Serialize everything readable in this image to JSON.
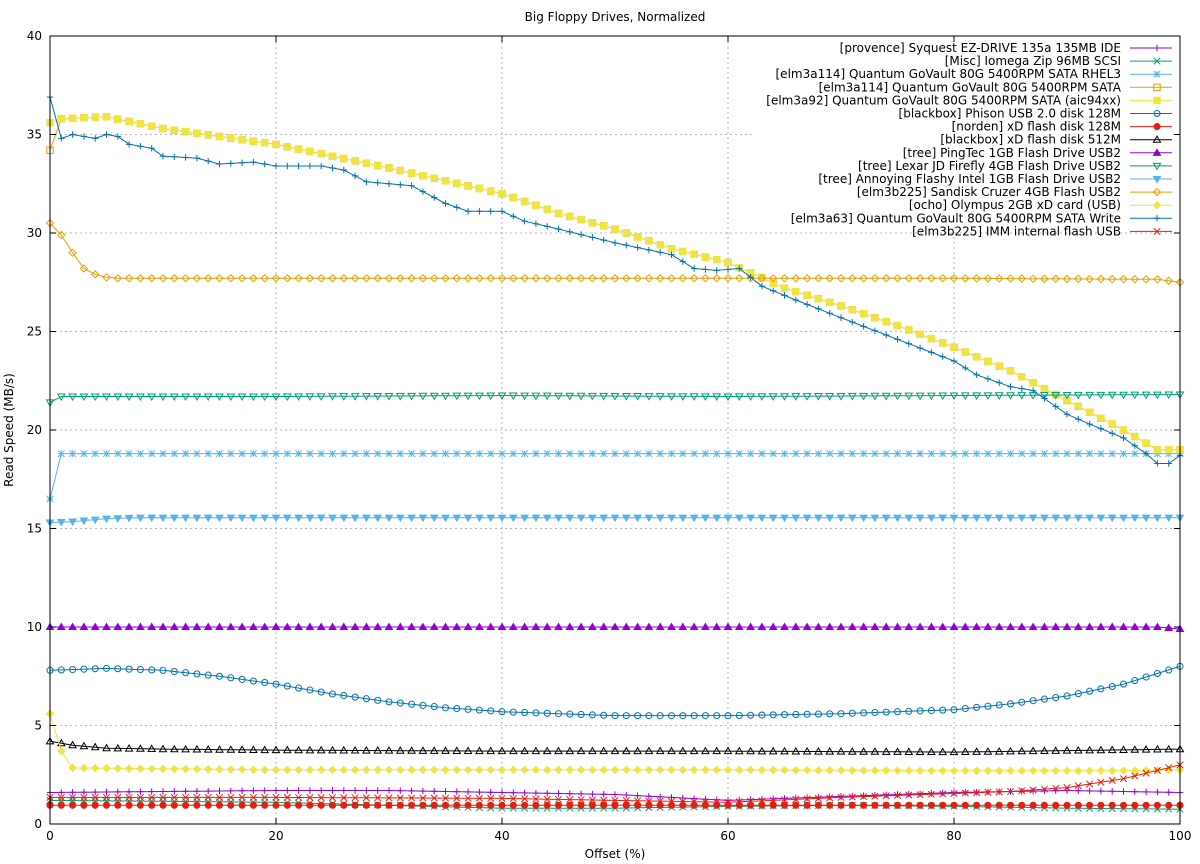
{
  "chart_data": {
    "type": "line",
    "title": "Big Floppy Drives, Normalized",
    "xlabel": "Offset (%)",
    "ylabel": "Read Speed (MB/s)",
    "xlim": [
      0,
      100
    ],
    "ylim": [
      0,
      40
    ],
    "xticks": [
      0,
      20,
      40,
      60,
      80,
      100
    ],
    "yticks": [
      0,
      5,
      10,
      15,
      20,
      25,
      30,
      35,
      40
    ],
    "grid": true,
    "legend_position": "top-right",
    "series": [
      {
        "name": "[provence] Syquest EZ-DRIVE 135a 135MB IDE",
        "color": "#9400d3",
        "marker": "plus",
        "points": [
          [
            0,
            1.6
          ],
          [
            10,
            1.65
          ],
          [
            20,
            1.7
          ],
          [
            30,
            1.7
          ],
          [
            40,
            1.6
          ],
          [
            50,
            1.5
          ],
          [
            60,
            1.2
          ],
          [
            70,
            1.4
          ],
          [
            80,
            1.6
          ],
          [
            90,
            1.7
          ],
          [
            100,
            1.6
          ]
        ]
      },
      {
        "name": "[Misc] Iomega Zip 96MB SCSI",
        "color": "#009e73",
        "marker": "cross",
        "points": [
          [
            0,
            1.2
          ],
          [
            10,
            1.15
          ],
          [
            20,
            1.1
          ],
          [
            30,
            0.95
          ],
          [
            40,
            0.8
          ],
          [
            50,
            0.8
          ],
          [
            60,
            0.9
          ],
          [
            70,
            0.95
          ],
          [
            80,
            0.9
          ],
          [
            90,
            0.8
          ],
          [
            100,
            0.75
          ]
        ]
      },
      {
        "name": "[elm3a114] Quantum GoVault 80G 5400RPM SATA RHEL3",
        "color": "#56b4e9",
        "marker": "star",
        "points": [
          [
            0,
            16.5
          ],
          [
            1,
            18.8
          ],
          [
            10,
            18.8
          ],
          [
            20,
            18.8
          ],
          [
            40,
            18.8
          ],
          [
            60,
            18.8
          ],
          [
            80,
            18.8
          ],
          [
            100,
            18.8
          ]
        ]
      },
      {
        "name": "[elm3a114] Quantum GoVault 80G 5400RPM SATA",
        "color": "#e69f00",
        "marker": "box",
        "points": [
          [
            0,
            34.2
          ],
          [
            1,
            35.8
          ],
          [
            5,
            35.9
          ],
          [
            10,
            35.3
          ],
          [
            20,
            34.5
          ],
          [
            30,
            33.3
          ],
          [
            40,
            32.0
          ],
          [
            45,
            31.0
          ],
          [
            50,
            30.2
          ],
          [
            55,
            29.2
          ],
          [
            60,
            28.5
          ],
          [
            65,
            27.2
          ],
          [
            70,
            26.3
          ],
          [
            75,
            25.3
          ],
          [
            80,
            24.2
          ],
          [
            85,
            23.0
          ],
          [
            90,
            21.5
          ],
          [
            95,
            20.0
          ],
          [
            98,
            19.0
          ],
          [
            100,
            19.0
          ]
        ]
      },
      {
        "name": "[elm3a92] Quantum GoVault 80G 5400RPM SATA (aic94xx)",
        "color": "#f0e442",
        "marker": "filled-box",
        "points": [
          [
            0,
            35.6
          ],
          [
            1,
            35.8
          ],
          [
            5,
            35.9
          ],
          [
            10,
            35.3
          ],
          [
            20,
            34.5
          ],
          [
            30,
            33.3
          ],
          [
            40,
            32.0
          ],
          [
            45,
            31.0
          ],
          [
            50,
            30.2
          ],
          [
            55,
            29.2
          ],
          [
            60,
            28.5
          ],
          [
            65,
            27.2
          ],
          [
            70,
            26.3
          ],
          [
            75,
            25.3
          ],
          [
            80,
            24.2
          ],
          [
            85,
            23.0
          ],
          [
            90,
            21.5
          ],
          [
            95,
            20.0
          ],
          [
            98,
            19.0
          ],
          [
            100,
            19.0
          ]
        ]
      },
      {
        "name": "[blackbox] Phison USB 2.0 disk 128M",
        "color": "#0072b2",
        "marker": "circle",
        "points": [
          [
            0,
            7.8
          ],
          [
            5,
            7.9
          ],
          [
            10,
            7.8
          ],
          [
            15,
            7.5
          ],
          [
            20,
            7.1
          ],
          [
            25,
            6.6
          ],
          [
            30,
            6.2
          ],
          [
            35,
            5.9
          ],
          [
            40,
            5.7
          ],
          [
            45,
            5.6
          ],
          [
            50,
            5.5
          ],
          [
            55,
            5.5
          ],
          [
            60,
            5.5
          ],
          [
            65,
            5.55
          ],
          [
            70,
            5.6
          ],
          [
            75,
            5.7
          ],
          [
            80,
            5.8
          ],
          [
            85,
            6.1
          ],
          [
            90,
            6.5
          ],
          [
            95,
            7.1
          ],
          [
            100,
            8.0
          ]
        ]
      },
      {
        "name": "[norden] xD flash disk 128M",
        "color": "#e51e10",
        "marker": "filled-circle",
        "points": [
          [
            0,
            0.95
          ],
          [
            20,
            0.95
          ],
          [
            40,
            0.95
          ],
          [
            60,
            0.95
          ],
          [
            80,
            0.95
          ],
          [
            100,
            0.95
          ]
        ]
      },
      {
        "name": "[blackbox] xD flash disk 512M",
        "color": "#000000",
        "marker": "triangle",
        "points": [
          [
            0,
            4.2
          ],
          [
            2,
            4.0
          ],
          [
            5,
            3.85
          ],
          [
            10,
            3.8
          ],
          [
            20,
            3.75
          ],
          [
            40,
            3.7
          ],
          [
            60,
            3.7
          ],
          [
            80,
            3.65
          ],
          [
            100,
            3.8
          ]
        ]
      },
      {
        "name": "[tree] PingTec 1GB Flash Drive USB2",
        "color": "#9400d3",
        "marker": "filled-triangle",
        "points": [
          [
            0,
            10.0
          ],
          [
            20,
            10.0
          ],
          [
            40,
            10.0
          ],
          [
            60,
            10.0
          ],
          [
            80,
            10.0
          ],
          [
            98,
            10.0
          ],
          [
            100,
            9.9
          ]
        ]
      },
      {
        "name": "[tree] Lexar JD Firefly 4GB Flash Drive USB2",
        "color": "#009e73",
        "marker": "inv-triangle",
        "points": [
          [
            0,
            21.4
          ],
          [
            1,
            21.7
          ],
          [
            20,
            21.7
          ],
          [
            40,
            21.75
          ],
          [
            60,
            21.7
          ],
          [
            80,
            21.75
          ],
          [
            100,
            21.8
          ]
        ]
      },
      {
        "name": "[tree] Annoying Flashy Intel 1GB Flash Drive USB2",
        "color": "#56b4e9",
        "marker": "filled-inv-triangle",
        "points": [
          [
            0,
            15.3
          ],
          [
            2,
            15.35
          ],
          [
            5,
            15.5
          ],
          [
            8,
            15.55
          ],
          [
            20,
            15.55
          ],
          [
            40,
            15.55
          ],
          [
            60,
            15.55
          ],
          [
            80,
            15.55
          ],
          [
            100,
            15.55
          ]
        ]
      },
      {
        "name": "[elm3b225] Sandisk Cruzer 4GB Flash USB2",
        "color": "#e69f00",
        "marker": "diamond",
        "points": [
          [
            0,
            30.5
          ],
          [
            1,
            29.9
          ],
          [
            2,
            29.0
          ],
          [
            3,
            28.2
          ],
          [
            4,
            27.9
          ],
          [
            5,
            27.75
          ],
          [
            6,
            27.7
          ],
          [
            20,
            27.7
          ],
          [
            40,
            27.7
          ],
          [
            60,
            27.7
          ],
          [
            80,
            27.7
          ],
          [
            98,
            27.65
          ],
          [
            100,
            27.5
          ]
        ]
      },
      {
        "name": "[ocho] Olympus 2GB xD card (USB)",
        "color": "#f0e442",
        "marker": "filled-diamond",
        "points": [
          [
            0,
            5.6
          ],
          [
            1,
            3.7
          ],
          [
            2,
            2.85
          ],
          [
            10,
            2.8
          ],
          [
            20,
            2.75
          ],
          [
            40,
            2.75
          ],
          [
            60,
            2.75
          ],
          [
            80,
            2.7
          ],
          [
            95,
            2.7
          ],
          [
            100,
            2.75
          ]
        ]
      },
      {
        "name": "[elm3a63] Quantum GoVault 80G 5400RPM SATA Write",
        "color": "#0072b2",
        "marker": "plus",
        "points": [
          [
            0,
            36.9
          ],
          [
            1,
            34.8
          ],
          [
            2,
            35.0
          ],
          [
            4,
            34.8
          ],
          [
            5,
            35.0
          ],
          [
            6,
            34.9
          ],
          [
            7,
            34.5
          ],
          [
            9,
            34.3
          ],
          [
            10,
            33.9
          ],
          [
            13,
            33.8
          ],
          [
            15,
            33.5
          ],
          [
            18,
            33.6
          ],
          [
            20,
            33.4
          ],
          [
            24,
            33.4
          ],
          [
            26,
            33.2
          ],
          [
            28,
            32.6
          ],
          [
            32,
            32.4
          ],
          [
            35,
            31.5
          ],
          [
            37,
            31.1
          ],
          [
            40,
            31.1
          ],
          [
            42,
            30.6
          ],
          [
            45,
            30.2
          ],
          [
            50,
            29.5
          ],
          [
            55,
            28.9
          ],
          [
            57,
            28.2
          ],
          [
            59,
            28.1
          ],
          [
            61,
            28.2
          ],
          [
            63,
            27.3
          ],
          [
            66,
            26.6
          ],
          [
            70,
            25.7
          ],
          [
            75,
            24.6
          ],
          [
            80,
            23.5
          ],
          [
            82,
            22.8
          ],
          [
            85,
            22.2
          ],
          [
            87,
            22.0
          ],
          [
            90,
            20.8
          ],
          [
            92,
            20.3
          ],
          [
            95,
            19.6
          ],
          [
            97,
            18.8
          ],
          [
            98,
            18.3
          ],
          [
            99,
            18.3
          ],
          [
            100,
            18.7
          ]
        ]
      },
      {
        "name": "[elm3b225] IMM internal flash USB",
        "color": "#e51e10",
        "marker": "cross",
        "points": [
          [
            0,
            1.35
          ],
          [
            10,
            1.35
          ],
          [
            20,
            1.35
          ],
          [
            40,
            1.3
          ],
          [
            60,
            1.1
          ],
          [
            70,
            1.35
          ],
          [
            80,
            1.55
          ],
          [
            85,
            1.65
          ],
          [
            90,
            1.85
          ],
          [
            95,
            2.3
          ],
          [
            100,
            3.0
          ]
        ]
      }
    ]
  }
}
